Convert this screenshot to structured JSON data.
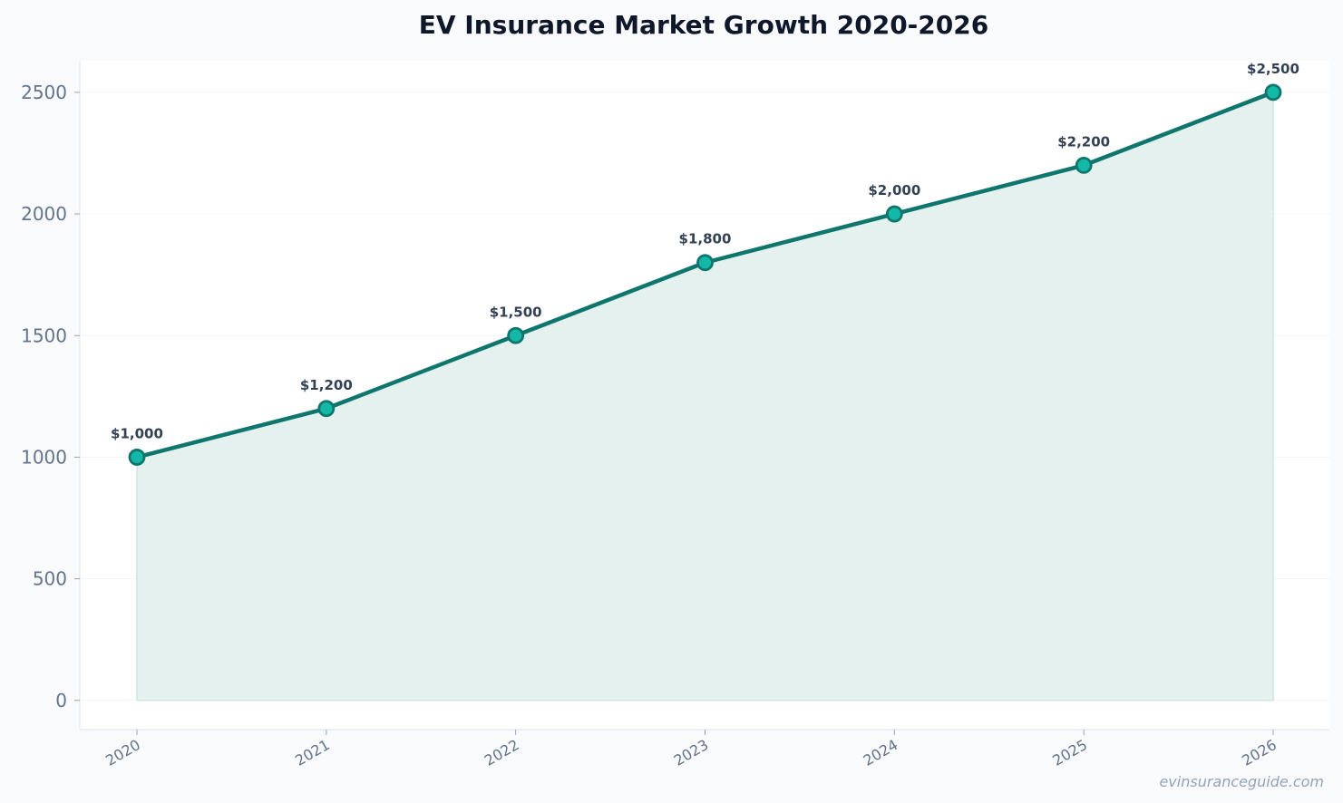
{
  "chart_data": {
    "type": "area",
    "title": "EV Insurance Market Growth 2020-2026",
    "xlabel": "",
    "ylabel": "",
    "categories": [
      "2020",
      "2021",
      "2022",
      "2023",
      "2024",
      "2025",
      "2026"
    ],
    "series": [
      {
        "values": [
          1000,
          1200,
          1500,
          1800,
          2000,
          2200,
          2500
        ],
        "data_labels": [
          "$1,000",
          "$1,200",
          "$1,500",
          "$1,800",
          "$2,000",
          "$2,200",
          "$2,500"
        ]
      }
    ],
    "yticks": [
      0,
      500,
      1000,
      1500,
      2000,
      2500
    ],
    "ylim": [
      -120,
      2630
    ],
    "grid": true,
    "line_color": "#0f766e",
    "marker_color": "#14b8a6",
    "fill_color": "#e5f1ee",
    "watermark": "evinsuranceguide.com"
  }
}
